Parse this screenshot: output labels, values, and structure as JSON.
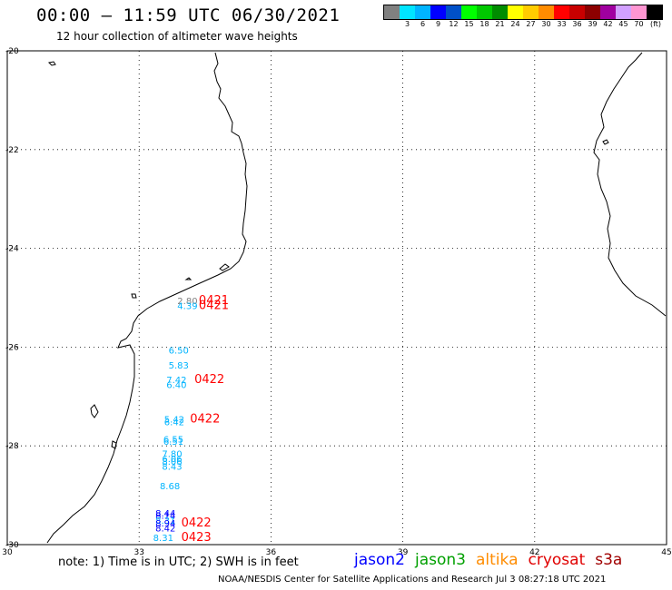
{
  "header": {
    "title": "00:00 – 11:59 UTC 06/30/2021",
    "subtitle": "12 hour collection of altimeter wave heights"
  },
  "colorbar": {
    "unit_label": "(ft)",
    "bins": [
      {
        "label": "",
        "color": "#808080"
      },
      {
        "label": "3",
        "color": "#00e5ff"
      },
      {
        "label": "6",
        "color": "#00b4ff"
      },
      {
        "label": "9",
        "color": "#0000ff"
      },
      {
        "label": "12",
        "color": "#0050c8"
      },
      {
        "label": "15",
        "color": "#00ff00"
      },
      {
        "label": "18",
        "color": "#00c800"
      },
      {
        "label": "21",
        "color": "#008c00"
      },
      {
        "label": "24",
        "color": "#ffff00"
      },
      {
        "label": "27",
        "color": "#ffcc00"
      },
      {
        "label": "30",
        "color": "#ff8c00"
      },
      {
        "label": "33",
        "color": "#ff0000"
      },
      {
        "label": "36",
        "color": "#c80000"
      },
      {
        "label": "39",
        "color": "#8c0000"
      },
      {
        "label": "42",
        "color": "#a000a0"
      },
      {
        "label": "45",
        "color": "#d2a0ff"
      },
      {
        "label": "70",
        "color": "#ff96d2"
      },
      {
        "label": "",
        "color": "#000000"
      }
    ]
  },
  "map": {
    "lon_ticks": [
      "30",
      "33",
      "36",
      "39",
      "42",
      "45"
    ],
    "lat_ticks": [
      "-20",
      "-22",
      "-24",
      "-26",
      "-28",
      "-30"
    ],
    "observations": [
      {
        "label": "2.80",
        "color": "#7f7f7f",
        "lon": 34.1,
        "lat": -25.13
      },
      {
        "label": "4.39",
        "color": "#00b4ff",
        "lon": 34.1,
        "lat": -25.23
      },
      {
        "label": "6.50",
        "color": "#00b4ff",
        "lon": 33.9,
        "lat": -26.13
      },
      {
        "label": "5.83",
        "color": "#00b4ff",
        "lon": 33.9,
        "lat": -26.43
      },
      {
        "label": "7.42",
        "color": "#00b4ff",
        "lon": 33.85,
        "lat": -26.73
      },
      {
        "label": "6.40",
        "color": "#00b4ff",
        "lon": 33.85,
        "lat": -26.83
      },
      {
        "label": "5.42",
        "color": "#00b4ff",
        "lon": 33.8,
        "lat": -27.53
      },
      {
        "label": "6.42",
        "color": "#00b4ff",
        "lon": 33.8,
        "lat": -27.58
      },
      {
        "label": "6.55",
        "color": "#00b4ff",
        "lon": 33.78,
        "lat": -27.93
      },
      {
        "label": "6.51",
        "color": "#00b4ff",
        "lon": 33.78,
        "lat": -27.98
      },
      {
        "label": "7.80",
        "color": "#00b4ff",
        "lon": 33.75,
        "lat": -28.23
      },
      {
        "label": "6.06",
        "color": "#00b4ff",
        "lon": 33.75,
        "lat": -28.33
      },
      {
        "label": "8.06",
        "color": "#00b4ff",
        "lon": 33.75,
        "lat": -28.38
      },
      {
        "label": "8.43",
        "color": "#00b4ff",
        "lon": 33.75,
        "lat": -28.48
      },
      {
        "label": "8.68",
        "color": "#00b4ff",
        "lon": 33.7,
        "lat": -28.88
      },
      {
        "label": "8.44",
        "color": "#0000ff",
        "lon": 33.6,
        "lat": -29.43
      },
      {
        "label": "8.14",
        "color": "#0000ff",
        "lon": 33.6,
        "lat": -29.48
      },
      {
        "label": "8.31",
        "color": "#00b4ff",
        "lon": 33.6,
        "lat": -29.58
      },
      {
        "label": "8.94",
        "color": "#0000ff",
        "lon": 33.6,
        "lat": -29.63
      },
      {
        "label": "8.42",
        "color": "#0000ff",
        "lon": 33.6,
        "lat": -29.73
      },
      {
        "label": "8.31",
        "color": "#00b4ff",
        "lon": 33.55,
        "lat": -29.93
      }
    ],
    "time_labels": [
      {
        "label": "0421",
        "color": "#ff0000",
        "lon": 34.7,
        "lat": -25.13
      },
      {
        "label": "0421",
        "color": "#ff0000",
        "lon": 34.7,
        "lat": -25.23
      },
      {
        "label": "0422",
        "color": "#ff0000",
        "lon": 34.6,
        "lat": -26.73
      },
      {
        "label": "0422",
        "color": "#ff0000",
        "lon": 34.5,
        "lat": -27.53
      },
      {
        "label": "0422",
        "color": "#ff0000",
        "lon": 34.3,
        "lat": -29.63
      },
      {
        "label": "0423",
        "color": "#ff0000",
        "lon": 34.3,
        "lat": -29.93
      }
    ]
  },
  "footer": {
    "note": "note: 1) Time is in UTC; 2) SWH is in feet",
    "credit": "NOAA/NESDIS Center for Satellite Applications and Research   Jul  3 08:27:18 UTC 2021"
  },
  "legend": [
    {
      "label": "jason2",
      "color": "#0000ff"
    },
    {
      "label": "jason3",
      "color": "#00a000"
    },
    {
      "label": "altika",
      "color": "#ff8c00"
    },
    {
      "label": "cryosat",
      "color": "#e00000"
    },
    {
      "label": "s3a",
      "color": "#a00000"
    }
  ]
}
